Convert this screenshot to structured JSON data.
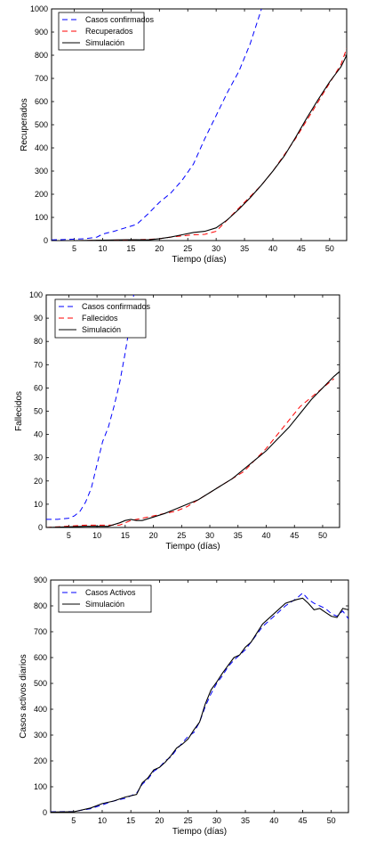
{
  "chart_data": [
    {
      "type": "line",
      "xlabel": "Tiempo (días)",
      "ylabel": "Recuperados",
      "xlim": [
        1,
        53
      ],
      "ylim": [
        0,
        1000
      ],
      "xticks": [
        5,
        10,
        15,
        20,
        25,
        30,
        35,
        40,
        45,
        50
      ],
      "yticks": [
        0,
        100,
        200,
        300,
        400,
        500,
        600,
        700,
        800,
        900,
        1000
      ],
      "grid": false,
      "legend_position": "top-left",
      "series": [
        {
          "name": "Casos confirmados",
          "color": "#0000ff",
          "style": "dashed",
          "x": [
            1,
            4,
            7,
            9,
            10,
            12,
            14,
            16,
            18,
            20,
            22,
            24,
            26,
            28,
            30,
            32,
            34,
            36,
            38
          ],
          "y": [
            3,
            5,
            8,
            15,
            28,
            40,
            55,
            70,
            115,
            165,
            205,
            260,
            330,
            440,
            540,
            640,
            730,
            850,
            1000
          ]
        },
        {
          "name": "Recuperados",
          "color": "#ff0000",
          "style": "dashed",
          "x": [
            1,
            5,
            10,
            15,
            18,
            20,
            22,
            24,
            26,
            28,
            30,
            32,
            34,
            36,
            38,
            40,
            42,
            44,
            46,
            48,
            50,
            52,
            53
          ],
          "y": [
            0,
            0,
            1,
            3,
            5,
            8,
            15,
            20,
            25,
            27,
            40,
            90,
            140,
            190,
            240,
            300,
            370,
            440,
            520,
            600,
            680,
            760,
            830
          ]
        },
        {
          "name": "Simulación",
          "color": "#000000",
          "style": "solid",
          "x": [
            1,
            5,
            10,
            15,
            18,
            20,
            22,
            24,
            26,
            28,
            30,
            32,
            34,
            36,
            38,
            40,
            42,
            44,
            46,
            48,
            50,
            52,
            53
          ],
          "y": [
            0,
            0,
            2,
            4,
            3,
            8,
            15,
            25,
            35,
            40,
            55,
            90,
            135,
            185,
            240,
            300,
            365,
            445,
            530,
            610,
            685,
            750,
            800
          ]
        }
      ]
    },
    {
      "type": "line",
      "xlabel": "Tiempo (días)",
      "ylabel": "Fallecidos",
      "xlim": [
        1,
        53
      ],
      "ylim": [
        0,
        100
      ],
      "xticks": [
        5,
        10,
        15,
        20,
        25,
        30,
        35,
        40,
        45,
        50
      ],
      "yticks": [
        0,
        10,
        20,
        30,
        40,
        50,
        60,
        70,
        80,
        90,
        100
      ],
      "grid": false,
      "legend_position": "top-left",
      "series": [
        {
          "name": "Casos confirmados",
          "color": "#0000ff",
          "style": "dashed",
          "x": [
            1,
            3,
            5,
            6,
            7,
            8,
            9,
            10,
            11,
            12,
            13,
            14,
            15,
            16,
            16.5
          ],
          "y": [
            3.5,
            3.5,
            4,
            5,
            7,
            11,
            17,
            27,
            37,
            43,
            52,
            62,
            75,
            90,
            100
          ]
        },
        {
          "name": "Fallecidos",
          "color": "#ff0000",
          "style": "dashed",
          "x": [
            1,
            8,
            10,
            12,
            14,
            16,
            18,
            20,
            22,
            24,
            26,
            28,
            30,
            32,
            34,
            36,
            38,
            40,
            42,
            44,
            46,
            48,
            50,
            52
          ],
          "y": [
            0,
            1,
            1,
            1,
            1,
            3,
            4,
            5,
            6,
            7,
            9,
            12,
            15,
            18,
            21,
            24,
            29,
            34,
            40,
            46,
            52,
            56,
            60,
            64
          ]
        },
        {
          "name": "Simulación",
          "color": "#000000",
          "style": "solid",
          "x": [
            1,
            8,
            10,
            12,
            14,
            15,
            16,
            17,
            18,
            20,
            22,
            24,
            26,
            28,
            30,
            32,
            34,
            36,
            38,
            40,
            42,
            44,
            46,
            48,
            50,
            52,
            53
          ],
          "y": [
            0,
            0.5,
            0.5,
            0.5,
            2,
            3,
            3.5,
            3,
            3,
            4.5,
            6,
            8,
            10,
            12,
            15,
            18,
            21,
            25,
            29,
            33,
            38,
            43,
            49,
            55,
            60,
            65,
            67
          ]
        }
      ]
    },
    {
      "type": "line",
      "xlabel": "Tiempo (días)",
      "ylabel": "Casos activos diarios",
      "xlim": [
        1,
        53
      ],
      "ylim": [
        0,
        900
      ],
      "xticks": [
        5,
        10,
        15,
        20,
        25,
        30,
        35,
        40,
        45,
        50
      ],
      "yticks": [
        0,
        100,
        200,
        300,
        400,
        500,
        600,
        700,
        800,
        900
      ],
      "grid": false,
      "legend_position": "top-left",
      "series": [
        {
          "name": "Casos Activos",
          "color": "#0000ff",
          "style": "dashed",
          "x": [
            1,
            5,
            8,
            10,
            12,
            14,
            16,
            17,
            18,
            19,
            20,
            21,
            22,
            23,
            24,
            25,
            26,
            27,
            28,
            29,
            30,
            31,
            32,
            33,
            34,
            35,
            36,
            38,
            40,
            42,
            44,
            45,
            46,
            47,
            48,
            49,
            50,
            51,
            52,
            53
          ],
          "y": [
            3,
            4,
            15,
            30,
            45,
            55,
            75,
            110,
            130,
            160,
            175,
            200,
            215,
            245,
            270,
            295,
            310,
            350,
            410,
            460,
            500,
            530,
            565,
            590,
            610,
            630,
            660,
            720,
            760,
            800,
            830,
            850,
            825,
            810,
            800,
            790,
            770,
            760,
            780,
            750
          ]
        },
        {
          "name": "Simulación",
          "color": "#000000",
          "style": "solid",
          "x": [
            1,
            5,
            8,
            10,
            12,
            14,
            16,
            17,
            18,
            19,
            20,
            21,
            22,
            23,
            24,
            25,
            26,
            27,
            28,
            29,
            30,
            31,
            32,
            33,
            34,
            35,
            36,
            38,
            40,
            42,
            44,
            45,
            46,
            47,
            48,
            49,
            50,
            51,
            52,
            53
          ],
          "y": [
            2,
            3,
            18,
            35,
            45,
            60,
            70,
            115,
            135,
            165,
            175,
            195,
            220,
            250,
            265,
            285,
            320,
            350,
            420,
            475,
            505,
            540,
            570,
            600,
            610,
            640,
            660,
            730,
            770,
            810,
            825,
            830,
            810,
            785,
            790,
            775,
            760,
            755,
            790,
            785
          ]
        }
      ]
    }
  ]
}
